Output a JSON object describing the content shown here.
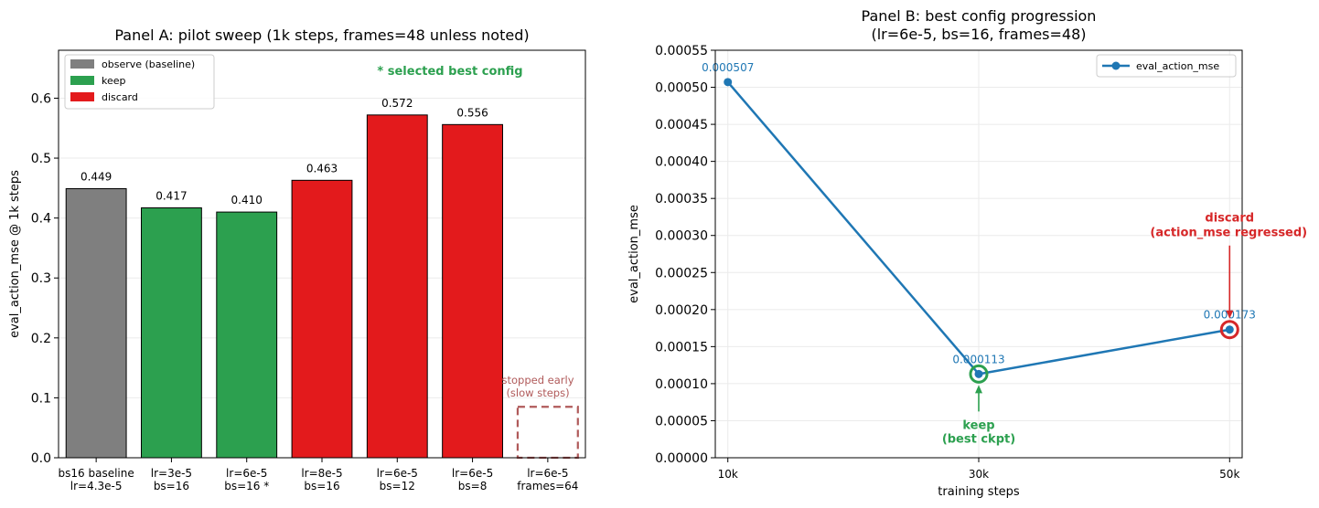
{
  "chart_data": [
    {
      "type": "bar",
      "title": "Panel A: pilot sweep (1k steps, frames=48 unless noted)",
      "ylabel": "eval_action_mse @ 1k steps",
      "ylim": [
        0,
        0.68
      ],
      "yticks": [
        "0.0",
        "0.1",
        "0.2",
        "0.3",
        "0.4",
        "0.5",
        "0.6"
      ],
      "grid": true,
      "legend_position": "top-left",
      "legend": [
        {
          "label": "observe (baseline)",
          "color": "#7f7f7f"
        },
        {
          "label": "keep",
          "color": "#2ca04f"
        },
        {
          "label": "discard",
          "color": "#e31a1c"
        }
      ],
      "categories": [
        [
          "bs16 baseline",
          "lr=4.3e-5"
        ],
        [
          "lr=3e-5",
          "bs=16"
        ],
        [
          "lr=6e-5",
          "bs=16 *"
        ],
        [
          "lr=8e-5",
          "bs=16"
        ],
        [
          "lr=6e-5",
          "bs=12"
        ],
        [
          "lr=6e-5",
          "bs=8"
        ],
        [
          "lr=6e-5",
          "frames=64"
        ]
      ],
      "values": [
        0.449,
        0.417,
        0.41,
        0.463,
        0.572,
        0.556,
        null
      ],
      "value_labels": [
        "0.449",
        "0.417",
        "0.410",
        "0.463",
        "0.572",
        "0.556",
        ""
      ],
      "status": [
        "observe",
        "keep",
        "keep",
        "discard",
        "discard",
        "discard",
        "stopped"
      ],
      "stopped_placeholder_value": 0.085,
      "annotations": {
        "selected": "* selected best config",
        "stopped": [
          "stopped early",
          "(slow steps)"
        ]
      }
    },
    {
      "type": "line",
      "title": [
        "Panel B: best config progression",
        "(lr=6e-5, bs=16, frames=48)"
      ],
      "xlabel": "training steps",
      "ylabel": "eval_action_mse",
      "x": [
        "10k",
        "30k",
        "50k"
      ],
      "x_values": [
        10000,
        30000,
        50000
      ],
      "xlim": [
        9000,
        51000
      ],
      "ylim": [
        0,
        0.00055
      ],
      "yticks": [
        "0.00000",
        "0.00005",
        "0.00010",
        "0.00015",
        "0.00020",
        "0.00025",
        "0.00030",
        "0.00035",
        "0.00040",
        "0.00045",
        "0.00050",
        "0.00055"
      ],
      "grid": true,
      "legend_position": "top-right",
      "series": [
        {
          "name": "eval_action_mse",
          "color": "#1f77b4",
          "values": [
            0.000507,
            0.000113,
            0.000173
          ],
          "labels": [
            "0.000507",
            "0.000113",
            "0.000173"
          ]
        }
      ],
      "annotations": {
        "keep": [
          "keep",
          "(best ckpt)"
        ],
        "discard": [
          "discard",
          "(action_mse regressed)"
        ],
        "keep_color": "#2ca04f",
        "discard_color": "#d62728"
      }
    }
  ]
}
